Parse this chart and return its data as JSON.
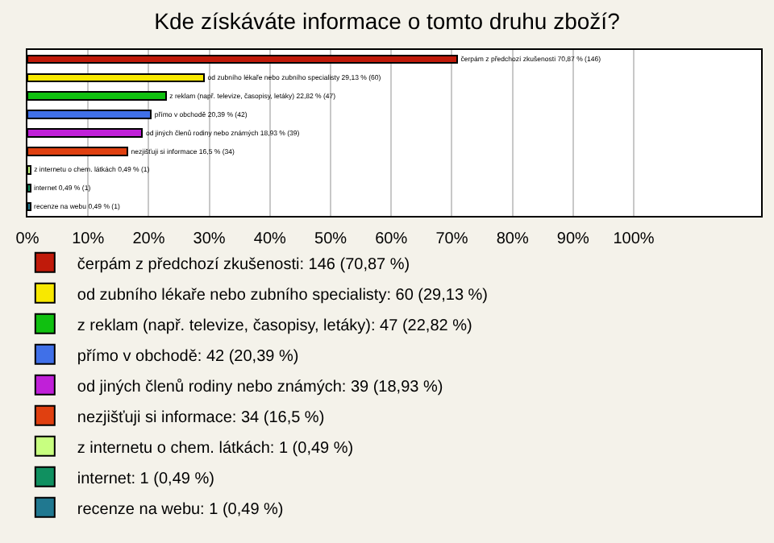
{
  "chart_data": {
    "type": "bar",
    "orientation": "horizontal",
    "stacked": true,
    "title": "Kde získáváte informace o tomto druhu zboží?",
    "categories": [
      null,
      null,
      null,
      null,
      null,
      null,
      null,
      null,
      null
    ],
    "series": [
      {
        "name": "čerpám z předchozí zkušenosti: 146 (70,87 %)",
        "color": "#c01a0a",
        "values": [
          70.87,
          null,
          null,
          null,
          null,
          null,
          null,
          null,
          null
        ],
        "value_labels": [
          "čerpám z předchozí zkušenosti 70,87 % (146)",
          null,
          null,
          null,
          null,
          null,
          null,
          null,
          null
        ]
      },
      {
        "name": "od zubního lékaře nebo zubního specialisty: 60 (29,13 %)",
        "color": "#f8e800",
        "values": [
          null,
          29.13,
          null,
          null,
          null,
          null,
          null,
          null,
          null
        ],
        "value_labels": [
          null,
          "od zubního lékaře nebo zubního specialisty 29,13 % (60)",
          null,
          null,
          null,
          null,
          null,
          null,
          null
        ]
      },
      {
        "name": "z reklam (např. televize, časopisy, letáky): 47 (22,82 %)",
        "color": "#10c010",
        "values": [
          null,
          null,
          22.82,
          null,
          null,
          null,
          null,
          null,
          null
        ],
        "value_labels": [
          null,
          null,
          "z reklam (např. televize, časopisy, letáky) 22,82 % (47)",
          null,
          null,
          null,
          null,
          null,
          null
        ]
      },
      {
        "name": "přímo v obchodě: 42 (20,39 %)",
        "color": "#4070e8",
        "values": [
          null,
          null,
          null,
          20.39,
          null,
          null,
          null,
          null,
          null
        ],
        "value_labels": [
          null,
          null,
          null,
          "přímo v obchodě 20,39 % (42)",
          null,
          null,
          null,
          null,
          null
        ]
      },
      {
        "name": "od jiných členů rodiny nebo známých: 39 (18,93 %)",
        "color": "#c020d8",
        "values": [
          null,
          null,
          null,
          null,
          18.93,
          null,
          null,
          null,
          null
        ],
        "value_labels": [
          null,
          null,
          null,
          null,
          "od jiných členů rodiny nebo známých 18,93 % (39)",
          null,
          null,
          null,
          null
        ]
      },
      {
        "name": "nezjišťuji si informace: 34 (16,5 %)",
        "color": "#e04010",
        "values": [
          null,
          null,
          null,
          null,
          null,
          16.5,
          null,
          null,
          null
        ],
        "value_labels": [
          null,
          null,
          null,
          null,
          null,
          "nezjišťuji si informace 16,5 % (34)",
          null,
          null,
          null
        ]
      },
      {
        "name": "z internetu o chem. látkách: 1 (0,49 %)",
        "color": "#c8ff80",
        "values": [
          null,
          null,
          null,
          null,
          null,
          null,
          0.49,
          null,
          null
        ],
        "value_labels": [
          null,
          null,
          null,
          null,
          null,
          null,
          "z internetu o chem. látkách 0,49 % (1)",
          null,
          null
        ]
      },
      {
        "name": "internet: 1 (0,49 %)",
        "color": "#109060",
        "values": [
          null,
          null,
          null,
          null,
          null,
          null,
          null,
          0.49,
          null
        ],
        "value_labels": [
          null,
          null,
          null,
          null,
          null,
          null,
          null,
          "internet 0,49 % (1)",
          null
        ]
      },
      {
        "name": "recenze na webu: 1 (0,49 %)",
        "color": "#207890",
        "values": [
          null,
          null,
          null,
          null,
          null,
          null,
          null,
          null,
          0.49
        ],
        "value_labels": [
          null,
          null,
          null,
          null,
          null,
          null,
          null,
          null,
          "recenze na webu 0,49 % (1)"
        ]
      }
    ],
    "xlim": [
      0,
      121
    ],
    "xticks": [
      {
        "value": 0,
        "label": "0%"
      },
      {
        "value": 10,
        "label": "10%"
      },
      {
        "value": 20,
        "label": "20%"
      },
      {
        "value": 30,
        "label": "30%"
      },
      {
        "value": 40,
        "label": "40%"
      },
      {
        "value": 50,
        "label": "50%"
      },
      {
        "value": 60,
        "label": "60%"
      },
      {
        "value": 70,
        "label": "70%"
      },
      {
        "value": 80,
        "label": "80%"
      },
      {
        "value": 90,
        "label": "90%"
      },
      {
        "value": 100,
        "label": "100%"
      }
    ],
    "grid": "x",
    "legend": "bottom"
  }
}
